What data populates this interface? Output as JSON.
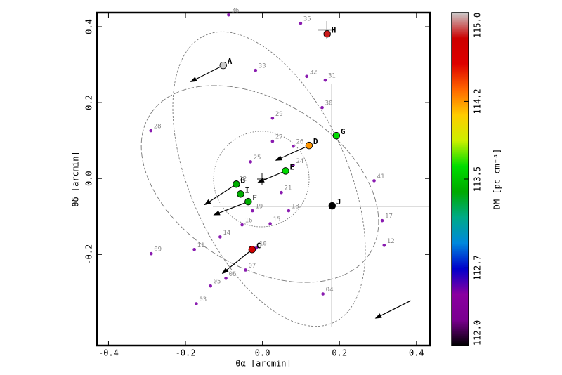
{
  "chart_data": {
    "type": "scatter",
    "xlabel": "θα [arcmin]",
    "ylabel": "θδ [arcmin]",
    "xlim": [
      -0.43,
      0.435
    ],
    "ylim": [
      -0.44,
      0.437
    ],
    "xticks": [
      -0.4,
      -0.2,
      {
        "value": 0,
        "label": "0.0"
      },
      0.2,
      0.4
    ],
    "yticks": [
      -0.2,
      {
        "value": 0,
        "label": "0.0"
      },
      0.2,
      0.4
    ],
    "series": [
      {
        "labels": [
          "36",
          "35",
          "33",
          "32",
          "31",
          "30",
          "29",
          "28",
          "27",
          "26",
          "25",
          "24",
          "22",
          "21",
          "41",
          "19",
          "18",
          "16",
          "15",
          "17",
          "14",
          "12",
          "11",
          "10",
          "09",
          "07",
          "06",
          "05",
          "04",
          "03"
        ],
        "x": [
          -0.088,
          0.099,
          -0.018,
          0.115,
          0.163,
          0.155,
          0.026,
          -0.29,
          0.026,
          0.08,
          -0.031,
          0.08,
          -0.068,
          0.049,
          0.29,
          -0.026,
          0.068,
          -0.053,
          0.02,
          0.311,
          -0.11,
          0.316,
          -0.177,
          -0.016,
          -0.289,
          -0.044,
          -0.095,
          -0.135,
          0.157,
          -0.172
        ],
        "y": [
          0.431,
          0.409,
          0.285,
          0.269,
          0.259,
          0.187,
          0.159,
          0.126,
          0.098,
          0.085,
          0.044,
          0.035,
          -0.013,
          -0.037,
          -0.006,
          -0.085,
          -0.085,
          -0.122,
          -0.119,
          -0.111,
          -0.154,
          -0.176,
          -0.187,
          -0.183,
          -0.198,
          -0.241,
          -0.263,
          -0.283,
          -0.304,
          -0.33
        ],
        "color": "#8a1cb0"
      },
      {
        "labels": [
          "A",
          "H",
          "D",
          "G",
          "E",
          "B",
          "I",
          "F",
          "J",
          "C"
        ],
        "x": [
          -0.102,
          0.168,
          0.121,
          0.192,
          0.06,
          -0.068,
          -0.057,
          -0.037,
          0.181,
          -0.027
        ],
        "y": [
          0.298,
          0.381,
          0.087,
          0.113,
          0.02,
          -0.015,
          -0.041,
          -0.061,
          -0.072,
          -0.187
        ],
        "dm": [
          115.0,
          114.8,
          114.2,
          113.6,
          113.6,
          113.4,
          113.4,
          113.4,
          112.0,
          114.7
        ],
        "pm_dx": [
          -0.084,
          null,
          -0.086,
          null,
          -0.071,
          -0.082,
          null,
          -0.089,
          null,
          -0.077
        ],
        "pm_dy": [
          -0.043,
          null,
          -0.039,
          null,
          -0.03,
          -0.054,
          null,
          -0.035,
          null,
          -0.063
        ]
      }
    ],
    "reference_arrow": {
      "x": 0.385,
      "y": -0.322,
      "dx": -0.091,
      "dy": -0.046
    },
    "colorbar": {
      "label": "DM [pc cm⁻³]",
      "lim": [
        112.0,
        115.0
      ],
      "ticks": [
        {
          "value": 112,
          "label": "112.0"
        },
        112.7,
        113.5,
        114.2,
        {
          "value": 115,
          "label": "115.0"
        }
      ],
      "colormap": [
        "#000000",
        "#7a0090",
        "#8a00a0",
        "#0000cc",
        "#0088dd",
        "#00aa88",
        "#00aa00",
        "#00dd00",
        "#ccf000",
        "#ffcc00",
        "#ff6600",
        "#dd0000",
        "#cc0000",
        "#cccccc"
      ]
    }
  }
}
